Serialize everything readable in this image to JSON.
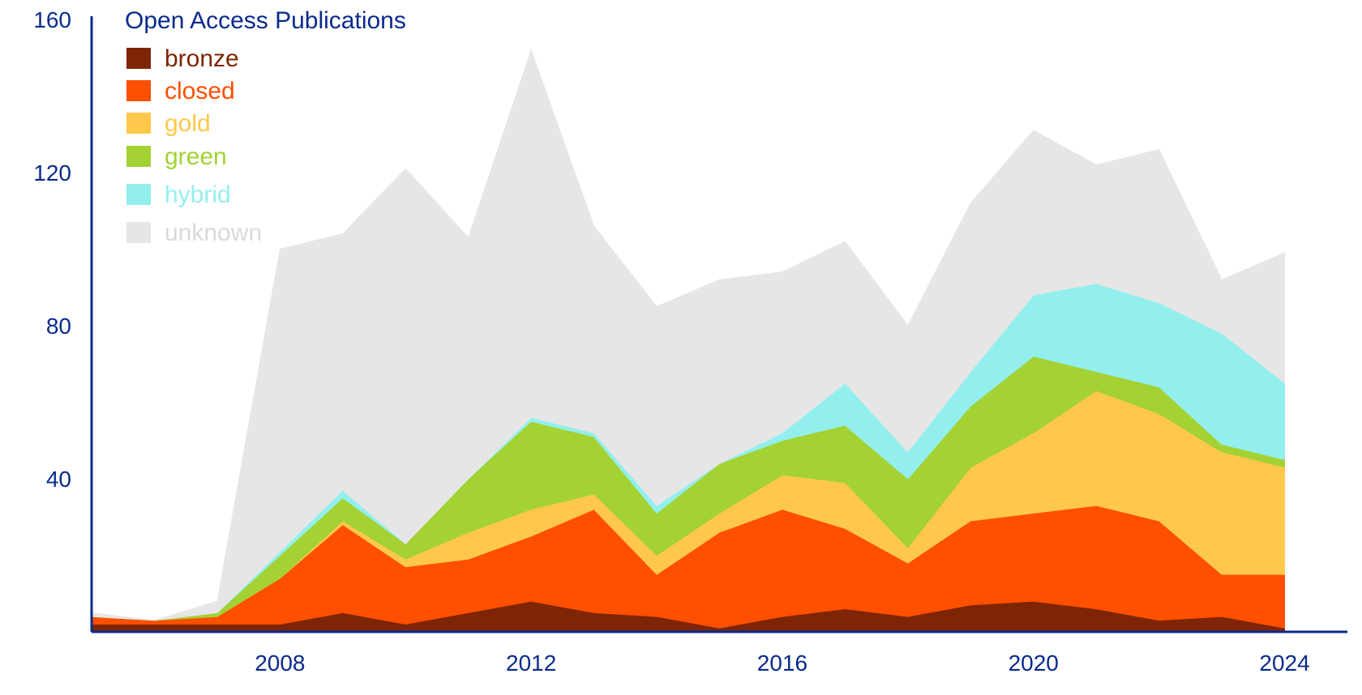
{
  "chart_data": {
    "type": "area",
    "stacked": true,
    "title": "",
    "legend_title": "Open Access Publications",
    "legend_position": "top-left",
    "xlabel": "",
    "ylabel": "",
    "x": [
      2005,
      2006,
      2007,
      2008,
      2009,
      2010,
      2011,
      2012,
      2013,
      2014,
      2015,
      2016,
      2017,
      2018,
      2019,
      2020,
      2021,
      2022,
      2023,
      2024
    ],
    "xlim": [
      2005,
      2025
    ],
    "ylim": [
      0,
      160
    ],
    "x_ticks": [
      "2008",
      "2012",
      "2016",
      "2020",
      "2024"
    ],
    "y_ticks": [
      "40",
      "80",
      "120",
      "160"
    ],
    "grid": false,
    "series": [
      {
        "name": "bronze",
        "color": "#7d2504",
        "values": [
          2,
          2,
          2,
          2,
          5,
          2,
          5,
          8,
          5,
          4,
          1,
          4,
          6,
          4,
          7,
          8,
          6,
          3,
          4,
          1
        ]
      },
      {
        "name": "closed",
        "color": "#ff4f00",
        "values": [
          2,
          1,
          2,
          12,
          23,
          15,
          14,
          17,
          27,
          11,
          25,
          28,
          21,
          14,
          22,
          23,
          27,
          26,
          11,
          14
        ]
      },
      {
        "name": "gold",
        "color": "#ffc84a",
        "values": [
          0,
          0,
          0,
          0,
          1,
          2,
          7,
          7,
          4,
          5,
          5,
          9,
          12,
          4,
          14,
          21,
          30,
          28,
          32,
          28
        ]
      },
      {
        "name": "green",
        "color": "#a3d232",
        "values": [
          0,
          0,
          1,
          6,
          6,
          4,
          14,
          23,
          15,
          11,
          13,
          9,
          15,
          18,
          16,
          20,
          5,
          7,
          2,
          2
        ]
      },
      {
        "name": "hybrid",
        "color": "#93efee",
        "values": [
          0,
          0,
          0,
          1,
          2,
          0,
          0,
          1,
          1,
          2,
          0,
          2,
          11,
          7,
          9,
          16,
          23,
          22,
          29,
          20
        ]
      },
      {
        "name": "unknown",
        "color": "#e6e6e6",
        "values": [
          1,
          0,
          3,
          79,
          67,
          98,
          63,
          96,
          54,
          52,
          48,
          42,
          37,
          33,
          44,
          43,
          31,
          40,
          14,
          34
        ]
      }
    ]
  }
}
